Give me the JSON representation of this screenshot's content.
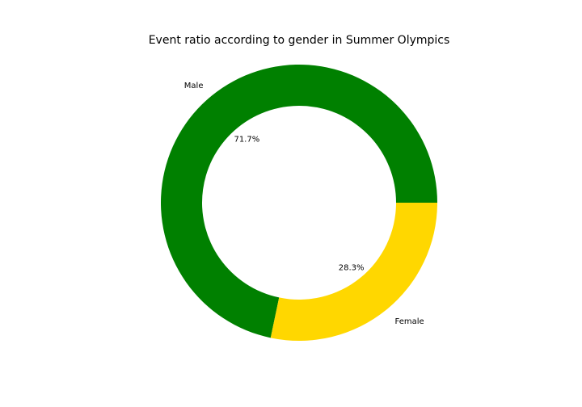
{
  "chart_data": {
    "type": "pie",
    "variant": "donut",
    "title": "Event ratio according to gender in Summer Olympics",
    "categories": [
      "Male",
      "Female"
    ],
    "values": [
      71.7,
      28.3
    ],
    "value_labels": [
      "71.7%",
      "28.3%"
    ],
    "colors": [
      "#008000",
      "#ffd700"
    ],
    "start_angle_deg": 0,
    "direction": "counterclockwise"
  }
}
